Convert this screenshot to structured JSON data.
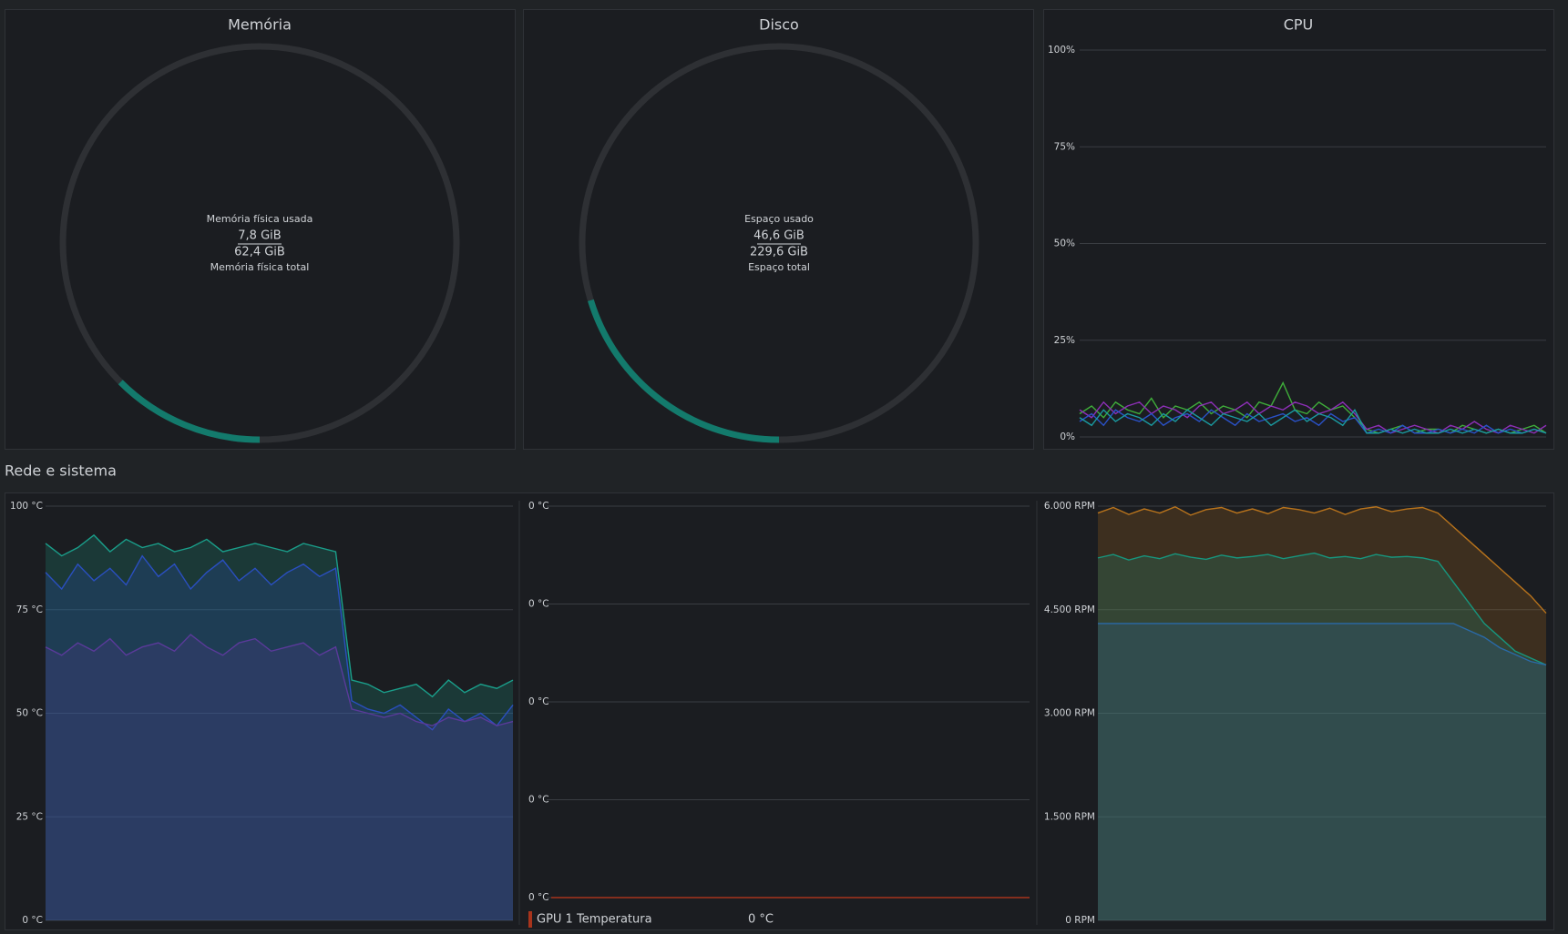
{
  "section_title": "Rede e sistema",
  "chart_data": [
    {
      "type": "gauge",
      "title": "Memória",
      "used_label": "Memória física usada",
      "used": 7.8,
      "used_value_label": "7,8 GiB",
      "total": 62.4,
      "total_value_label": "62,4 GiB",
      "total_label": "Memória física total",
      "color": "#137a6c"
    },
    {
      "type": "gauge",
      "title": "Disco",
      "used_label": "Espaço usado",
      "used": 46.6,
      "used_value_label": "46,6 GiB",
      "total": 229.6,
      "total_value_label": "229,6 GiB",
      "total_label": "Espaço total",
      "color": "#137a6c"
    },
    {
      "type": "line",
      "title": "CPU",
      "ylim": [
        0,
        100
      ],
      "grid": true,
      "area": false,
      "yticks": [
        {
          "value": 0,
          "label": "0%"
        },
        {
          "value": 25,
          "label": "25%"
        },
        {
          "value": 50,
          "label": "50%"
        },
        {
          "value": 75,
          "label": "75%"
        },
        {
          "value": 100,
          "label": "100%"
        }
      ],
      "series": [
        {
          "color": "#3fae3a",
          "values": [
            6,
            8,
            5,
            9,
            7,
            6,
            10,
            5,
            8,
            7,
            9,
            6,
            8,
            7,
            5,
            9,
            8,
            14,
            7,
            6,
            9,
            7,
            8,
            5,
            2,
            1,
            2,
            3,
            1,
            2,
            2,
            1,
            3,
            2,
            1,
            2,
            1,
            2,
            3,
            1
          ]
        },
        {
          "color": "#8e2fb8",
          "values": [
            7,
            5,
            9,
            6,
            8,
            9,
            6,
            8,
            7,
            5,
            8,
            9,
            6,
            7,
            9,
            6,
            8,
            7,
            9,
            8,
            6,
            7,
            9,
            6,
            2,
            3,
            1,
            2,
            3,
            2,
            1,
            3,
            2,
            4,
            2,
            1,
            3,
            2,
            1,
            3
          ]
        },
        {
          "color": "#2a52c9",
          "values": [
            4,
            6,
            3,
            7,
            5,
            4,
            6,
            3,
            5,
            6,
            4,
            7,
            5,
            3,
            6,
            4,
            5,
            6,
            4,
            5,
            3,
            6,
            4,
            5,
            1,
            2,
            1,
            3,
            1,
            1,
            2,
            1,
            2,
            1,
            3,
            1,
            2,
            1,
            2,
            1
          ]
        },
        {
          "color": "#1a9aa0",
          "values": [
            5,
            3,
            7,
            4,
            6,
            5,
            3,
            6,
            4,
            7,
            5,
            3,
            6,
            5,
            4,
            6,
            3,
            5,
            7,
            4,
            6,
            5,
            3,
            7,
            1,
            1,
            2,
            1,
            2,
            1,
            1,
            2,
            1,
            2,
            1,
            2,
            1,
            1,
            2,
            1
          ]
        }
      ]
    },
    {
      "type": "line",
      "ylim": [
        0,
        100
      ],
      "grid": true,
      "area": true,
      "yticks": [
        {
          "value": 0,
          "label": "0 °C"
        },
        {
          "value": 25,
          "label": "25 °C"
        },
        {
          "value": 50,
          "label": "50 °C"
        },
        {
          "value": 75,
          "label": "75 °C"
        },
        {
          "value": 100,
          "label": "100 °C"
        }
      ],
      "series": [
        {
          "color": "#1a9e8a",
          "values": [
            91,
            88,
            90,
            93,
            89,
            92,
            90,
            91,
            89,
            90,
            92,
            89,
            90,
            91,
            90,
            89,
            91,
            90,
            89,
            58,
            57,
            55,
            56,
            57,
            54,
            58,
            55,
            57,
            56,
            58
          ]
        },
        {
          "color": "#2a4fc0",
          "values": [
            84,
            80,
            86,
            82,
            85,
            81,
            88,
            83,
            86,
            80,
            84,
            87,
            82,
            85,
            81,
            84,
            86,
            83,
            85,
            53,
            51,
            50,
            52,
            49,
            46,
            51,
            48,
            50,
            47,
            52
          ]
        },
        {
          "color": "#5a3a9a",
          "values": [
            66,
            64,
            67,
            65,
            68,
            64,
            66,
            67,
            65,
            69,
            66,
            64,
            67,
            68,
            65,
            66,
            67,
            64,
            66,
            51,
            50,
            49,
            50,
            48,
            47,
            49,
            48,
            49,
            47,
            48
          ]
        }
      ]
    },
    {
      "type": "line",
      "ylim": [
        0,
        0.4
      ],
      "grid": true,
      "area": false,
      "yticks": [
        {
          "value": 0,
          "label": "0 °C"
        },
        {
          "value": 0.1,
          "label": "0 °C"
        },
        {
          "value": 0.2,
          "label": "0 °C"
        },
        {
          "value": 0.3,
          "label": "0 °C"
        },
        {
          "value": 0.4,
          "label": "0 °C"
        }
      ],
      "series": [
        {
          "name": "GPU 1 Temperatura",
          "color": "#a8341c",
          "values": [
            0,
            0,
            0,
            0,
            0,
            0,
            0,
            0,
            0,
            0
          ],
          "current": 0,
          "current_label": "0 °C"
        }
      ]
    },
    {
      "type": "line",
      "ylim": [
        0,
        6000
      ],
      "grid": true,
      "area": true,
      "yticks": [
        {
          "value": 0,
          "label": "0 RPM"
        },
        {
          "value": 1500,
          "label": "1.500 RPM"
        },
        {
          "value": 3000,
          "label": "3.000 RPM"
        },
        {
          "value": 4500,
          "label": "4.500 RPM"
        },
        {
          "value": 6000,
          "label": "6.000 RPM"
        }
      ],
      "series": [
        {
          "color": "#b8731c",
          "values": [
            5900,
            5980,
            5880,
            5960,
            5900,
            5990,
            5870,
            5950,
            5980,
            5900,
            5960,
            5890,
            5980,
            5950,
            5900,
            5970,
            5880,
            5960,
            5990,
            5920,
            5960,
            5980,
            5900,
            5700,
            5500,
            5300,
            5100,
            4900,
            4700,
            4450
          ]
        },
        {
          "color": "#17967e",
          "values": [
            5250,
            5300,
            5220,
            5280,
            5240,
            5310,
            5260,
            5230,
            5290,
            5250,
            5270,
            5300,
            5240,
            5280,
            5320,
            5250,
            5270,
            5240,
            5300,
            5260,
            5270,
            5250,
            5200,
            4900,
            4600,
            4300,
            4100,
            3900,
            3800,
            3700
          ]
        },
        {
          "color": "#2a6aa8",
          "values": [
            4300,
            4300,
            4300,
            4300,
            4300,
            4300,
            4300,
            4300,
            4300,
            4300,
            4300,
            4300,
            4300,
            4300,
            4300,
            4300,
            4300,
            4300,
            4300,
            4300,
            4300,
            4300,
            4300,
            4300,
            4200,
            4100,
            3950,
            3850,
            3750,
            3700
          ]
        }
      ]
    }
  ]
}
